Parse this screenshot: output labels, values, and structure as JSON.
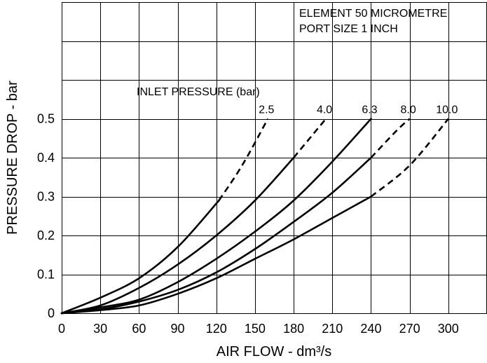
{
  "chart_data": {
    "type": "line",
    "title": "",
    "annotations": [
      "ELEMENT 50 MICROMETRE",
      "PORT SIZE 1 INCH"
    ],
    "legend_title": "INLET PRESSURE (bar)",
    "xlabel": "AIR FLOW - dm³/s",
    "ylabel": "PRESSURE DROP - bar",
    "xlim": [
      0,
      330
    ],
    "ylim": [
      0,
      0.8
    ],
    "x_ticks": [
      0,
      30,
      60,
      90,
      120,
      150,
      180,
      210,
      240,
      270,
      300
    ],
    "x_tick_labels": [
      "0",
      "30",
      "60",
      "90",
      "120",
      "150",
      "180",
      "210",
      "240",
      "270",
      "300"
    ],
    "y_ticks": [
      0,
      0.1,
      0.2,
      0.3,
      0.4,
      0.5
    ],
    "y_tick_labels": [
      "0",
      "0.1",
      "0.2",
      "0.3",
      "0.4",
      "0.5"
    ],
    "grid": true,
    "series": [
      {
        "name": "2.5",
        "x": [
          0,
          30,
          60,
          90,
          122
        ],
        "y": [
          0,
          0.04,
          0.09,
          0.17,
          0.29
        ],
        "dashed_x": [
          122,
          140,
          160
        ],
        "dashed_y": [
          0.29,
          0.38,
          0.5
        ]
      },
      {
        "name": "4.0",
        "x": [
          0,
          30,
          60,
          90,
          120,
          150,
          180
        ],
        "y": [
          0,
          0.02,
          0.065,
          0.125,
          0.2,
          0.29,
          0.4
        ],
        "dashed_x": [
          180,
          195,
          205
        ],
        "dashed_y": [
          0.4,
          0.46,
          0.5
        ]
      },
      {
        "name": "6.3",
        "x": [
          0,
          30,
          60,
          90,
          120,
          150,
          180,
          210,
          240
        ],
        "y": [
          0,
          0.015,
          0.035,
          0.08,
          0.14,
          0.21,
          0.29,
          0.39,
          0.5
        ],
        "dashed_x": [],
        "dashed_y": []
      },
      {
        "name": "8.0",
        "x": [
          0,
          30,
          60,
          90,
          120,
          150,
          180,
          210,
          240
        ],
        "y": [
          0,
          0.01,
          0.03,
          0.06,
          0.105,
          0.165,
          0.235,
          0.31,
          0.4
        ],
        "dashed_x": [
          240,
          260,
          270
        ],
        "dashed_y": [
          0.4,
          0.47,
          0.5
        ]
      },
      {
        "name": "10.0",
        "x": [
          0,
          30,
          60,
          90,
          120,
          150,
          180,
          210,
          240
        ],
        "y": [
          0,
          0.008,
          0.02,
          0.05,
          0.09,
          0.14,
          0.19,
          0.245,
          0.3
        ],
        "dashed_x": [
          240,
          270,
          300
        ],
        "dashed_y": [
          0.3,
          0.38,
          0.5
        ]
      }
    ]
  }
}
